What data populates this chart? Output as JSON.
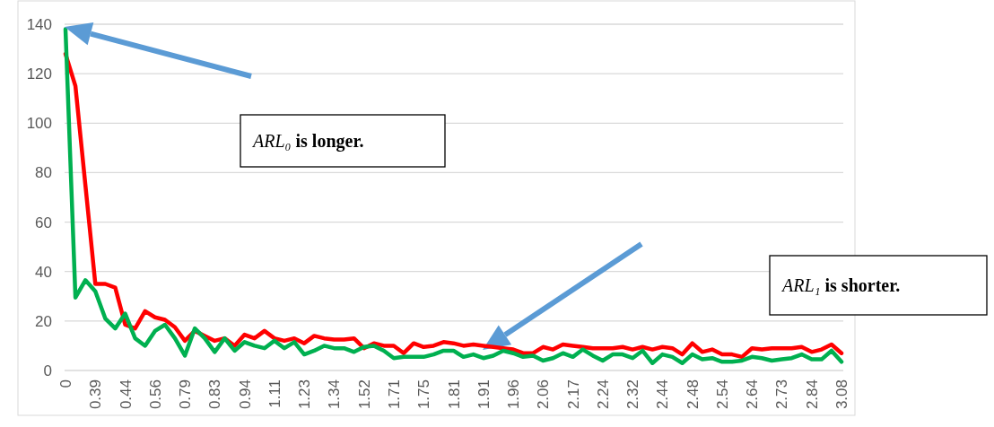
{
  "chart_data": {
    "type": "line",
    "categories": [
      "0",
      null,
      null,
      "0.39",
      null,
      null,
      "0.44",
      null,
      null,
      "0.56",
      null,
      null,
      "0.79",
      null,
      null,
      "0.83",
      null,
      null,
      "0.94",
      null,
      null,
      "1.11",
      null,
      null,
      "1.23",
      null,
      null,
      "1.34",
      null,
      null,
      "1.52",
      null,
      null,
      "1.71",
      null,
      null,
      "1.75",
      null,
      null,
      "1.81",
      null,
      null,
      "1.91",
      null,
      null,
      "1.96",
      null,
      null,
      "2.06",
      null,
      null,
      "2.17",
      null,
      null,
      "2.24",
      null,
      null,
      "2.32",
      null,
      null,
      "2.44",
      null,
      null,
      "2.48",
      null,
      null,
      "2.54",
      null,
      null,
      "2.64",
      null,
      null,
      "2.73",
      null,
      null,
      "2.84",
      null,
      null,
      "3.08"
    ],
    "series": [
      {
        "color": "#ff0000",
        "values": [
          128,
          115,
          75,
          35,
          35,
          33.5,
          18.5,
          17,
          24,
          21.5,
          20.5,
          17.5,
          12,
          16,
          14,
          12,
          13,
          10,
          14.5,
          13,
          16,
          13,
          12,
          13,
          11,
          14,
          13,
          12.5,
          12.5,
          13,
          9,
          11,
          10,
          10,
          7,
          11,
          9.5,
          10,
          11.5,
          11,
          10,
          10.5,
          10,
          9.5,
          9,
          8.5,
          7,
          7,
          9.5,
          8.5,
          10.5,
          10,
          9.5,
          9,
          9,
          9,
          9.5,
          8.5,
          9.5,
          8.5,
          9.5,
          9,
          6.5,
          11,
          7.5,
          8.5,
          6.5,
          6.5,
          5.5,
          9,
          8.5,
          9,
          9,
          9,
          9.5,
          7.5,
          8.5,
          10.5,
          7
        ]
      },
      {
        "color": "#00b050",
        "values": [
          138,
          29.5,
          36.5,
          32,
          21,
          17,
          23,
          13,
          10,
          16,
          18.5,
          13,
          6,
          17,
          13,
          7.5,
          13,
          8,
          11.5,
          10,
          9,
          12,
          9,
          11.5,
          6.5,
          8,
          10,
          9,
          9,
          7.5,
          9.5,
          10,
          8,
          5,
          5.5,
          5.5,
          5.5,
          6.5,
          8,
          8,
          5.5,
          6.5,
          5,
          6,
          8,
          7,
          5.5,
          6,
          4,
          5,
          7,
          5.5,
          8.5,
          6,
          4,
          6.5,
          6.5,
          5,
          8,
          3,
          6.5,
          5.5,
          3,
          6.5,
          4.5,
          5,
          3.5,
          3.5,
          4,
          5.5,
          5,
          4,
          4.5,
          5,
          6.5,
          4.5,
          4.5,
          8,
          3.5
        ]
      }
    ],
    "ylim": [
      0,
      140
    ],
    "yticks": [
      0,
      20,
      40,
      60,
      80,
      100,
      120,
      140
    ],
    "grid": "y",
    "marker": "none",
    "line_style": "solid",
    "annotations": [
      "ARL₀ is longer.",
      "ARL₁ is shorter."
    ]
  }
}
